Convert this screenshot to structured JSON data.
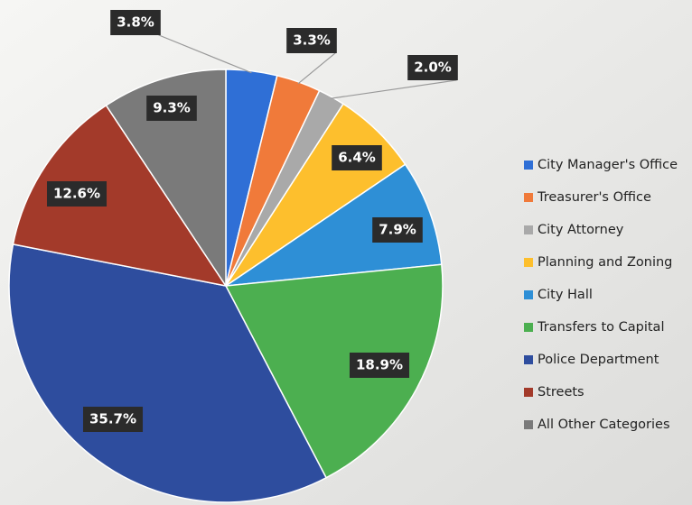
{
  "chart_data": {
    "type": "pie",
    "categories": [
      "City Manager's Office",
      "Treasurer's Office",
      "City Attorney",
      "Planning and Zoning",
      "City Hall",
      "Transfers to Capital",
      "Police Department",
      "Streets",
      "All Other Categories"
    ],
    "values": [
      3.8,
      3.3,
      2.0,
      6.4,
      7.9,
      18.9,
      35.7,
      12.6,
      9.3
    ],
    "value_labels": [
      "3.8%",
      "3.3%",
      "2.0%",
      "6.4%",
      "7.9%",
      "18.9%",
      "35.7%",
      "12.6%",
      "9.3%"
    ],
    "colors": [
      "#2f6fd6",
      "#f07a3a",
      "#a9a9a9",
      "#fdbf2d",
      "#2e8fd6",
      "#4caf50",
      "#2e4d9e",
      "#a33a2a",
      "#7a7a7a"
    ],
    "legend": "right"
  }
}
